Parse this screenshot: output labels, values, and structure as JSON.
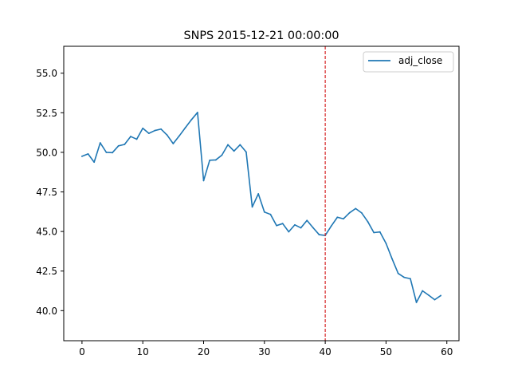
{
  "chart_data": {
    "type": "line",
    "title": "SNPS 2015-12-21 00:00:00",
    "xlabel": "",
    "ylabel": "",
    "xlim": [
      -3,
      62
    ],
    "ylim": [
      38.1,
      56.7
    ],
    "xticks": [
      0,
      10,
      20,
      30,
      40,
      50,
      60
    ],
    "yticks": [
      40.0,
      42.5,
      45.0,
      47.5,
      50.0,
      52.5,
      55.0
    ],
    "xtick_labels": [
      "0",
      "10",
      "20",
      "30",
      "40",
      "50",
      "60"
    ],
    "ytick_labels": [
      "40.0",
      "42.5",
      "45.0",
      "47.5",
      "50.0",
      "52.5",
      "55.0"
    ],
    "grid": false,
    "legend_position": "top-right",
    "series": [
      {
        "name": "adj_close",
        "color": "#1f77b4",
        "x": [
          0,
          1,
          2,
          3,
          4,
          5,
          6,
          7,
          8,
          9,
          10,
          11,
          12,
          13,
          14,
          15,
          16,
          17,
          18,
          19,
          20,
          21,
          22,
          23,
          24,
          25,
          26,
          27,
          28,
          29,
          30,
          31,
          32,
          33,
          34,
          35,
          36,
          37,
          38,
          39,
          40,
          41,
          42,
          43,
          44,
          45,
          46,
          47,
          48,
          49,
          50,
          51,
          52,
          53,
          54,
          55,
          56,
          57,
          58,
          59
        ],
        "y": [
          49.75,
          49.9,
          49.38,
          50.6,
          50.0,
          49.98,
          50.41,
          50.5,
          51.0,
          50.83,
          51.52,
          51.2,
          51.38,
          51.47,
          51.09,
          50.55,
          51.04,
          51.56,
          52.06,
          52.52,
          48.21,
          49.5,
          49.52,
          49.82,
          50.48,
          50.08,
          50.48,
          50.02,
          46.55,
          47.38,
          46.23,
          46.08,
          45.37,
          45.5,
          44.98,
          45.42,
          45.23,
          45.7,
          45.24,
          44.8,
          44.75,
          45.35,
          45.9,
          45.8,
          46.18,
          46.45,
          46.17,
          45.62,
          44.93,
          44.97,
          44.25,
          43.27,
          42.35,
          42.1,
          42.02,
          40.52,
          41.25,
          40.98,
          40.69,
          40.95
        ]
      }
    ],
    "reference_lines": [
      {
        "axis": "x",
        "value": 40,
        "color": "#d62728",
        "style": "dashed"
      }
    ]
  }
}
